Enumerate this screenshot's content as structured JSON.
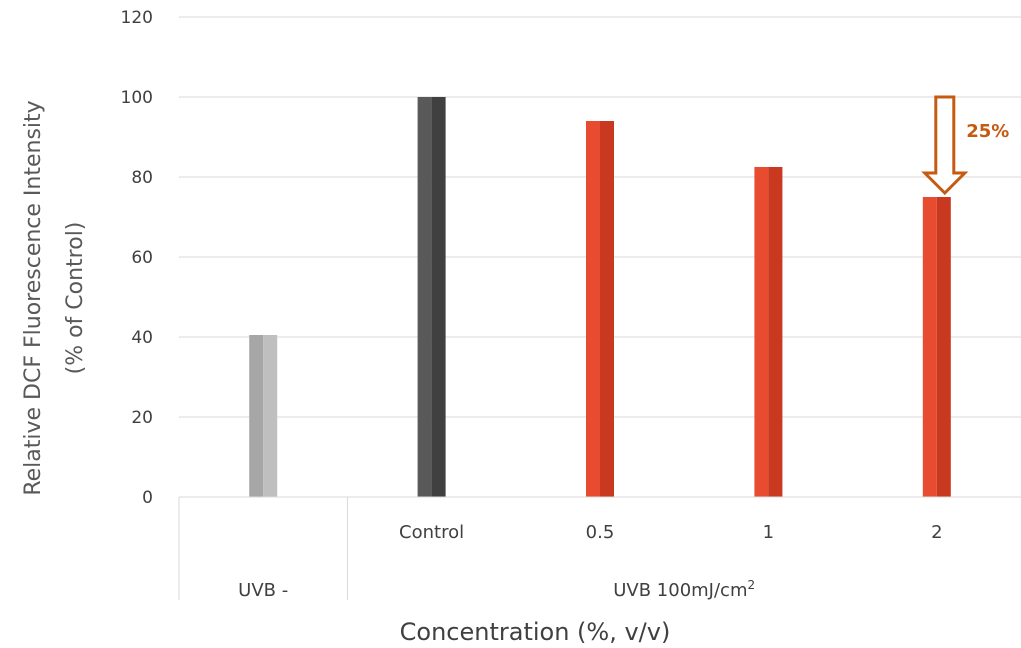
{
  "chart_data": {
    "type": "bar",
    "ylabel_line1": "Relative DCF Fluorescence Intensity",
    "ylabel_line2": "(% of Control)",
    "xlabel": "Concentration (%, v/v)",
    "ylim": [
      0,
      120
    ],
    "yticks": [
      0,
      20,
      40,
      60,
      80,
      100,
      120
    ],
    "grid": true,
    "categories": [
      "",
      "Control",
      "0.5",
      "1",
      "2"
    ],
    "group_labels": [
      {
        "label": "UVB -",
        "span": [
          0,
          0
        ]
      },
      {
        "label": "UVB 100mJ/cm",
        "superscript": "2",
        "span": [
          1,
          4
        ]
      }
    ],
    "values": [
      40.5,
      100,
      94,
      82.5,
      75
    ],
    "bar_colors": [
      "#a6a6a6",
      "#595959",
      "#e84c30",
      "#e84c30",
      "#e84c30"
    ],
    "bar_shade_colors": [
      "#bfbfbf",
      "#404040",
      "#c8391f",
      "#c8391f",
      "#c8391f"
    ],
    "annotation": {
      "text": "25%",
      "category_index": 4,
      "from": 100,
      "to": 75,
      "color": "#c55a11"
    }
  }
}
